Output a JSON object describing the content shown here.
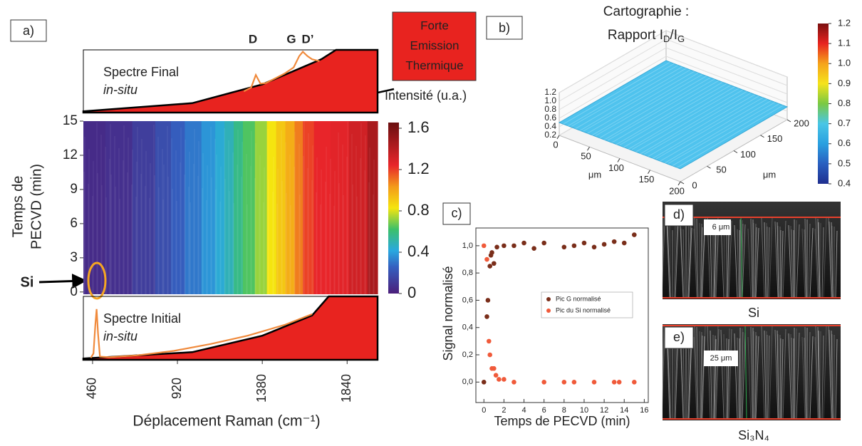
{
  "chart_data": [
    {
      "type": "heatmap",
      "panel_label": "a)",
      "ylabel": [
        "Temps de",
        "PECVD  (min)"
      ],
      "xlabel": "Déplacement Raman (cm⁻¹)",
      "xlim": [
        410,
        2005
      ],
      "ylim": [
        -0.2,
        15
      ],
      "xticks": [
        460,
        920,
        1380,
        1840
      ],
      "yticks": [
        0,
        3,
        6,
        9,
        12,
        15
      ],
      "x": [
        460,
        600,
        750,
        850,
        920,
        1000,
        1100,
        1150,
        1200,
        1250,
        1300,
        1380,
        1430,
        1480,
        1530,
        1580,
        1620,
        1700,
        1800,
        1900,
        2000
      ],
      "values": [
        0.05,
        0.07,
        0.12,
        0.18,
        0.24,
        0.3,
        0.36,
        0.42,
        0.47,
        0.55,
        0.62,
        0.7,
        0.8,
        0.88,
        0.95,
        1.05,
        1.15,
        1.2,
        1.22,
        1.28,
        1.4
      ],
      "annotation": "Si",
      "colorbar": {
        "title": "Intensité (u.a.)",
        "lim": [
          0,
          1.6
        ],
        "ticks": [
          0,
          0.4,
          0.8,
          1.2,
          1.6
        ],
        "colorscale": [
          [
            0,
            "#4b1e7a"
          ],
          [
            0.25,
            "#3460c0"
          ],
          [
            0.4,
            "#29a8e0"
          ],
          [
            0.6,
            "#3cc06a"
          ],
          [
            0.8,
            "#f5e50f"
          ],
          [
            1.0,
            "#f39a1a"
          ],
          [
            1.2,
            "#e8252a"
          ],
          [
            1.6,
            "#6a0f10"
          ]
        ]
      }
    },
    {
      "type": "area",
      "title": "Spectre Final",
      "subtitle": "in-situ",
      "peak_labels": [
        "D",
        "G",
        "D’"
      ],
      "callout": [
        "Forte",
        "Emission",
        "Thermique"
      ],
      "xlim": [
        410,
        2005
      ],
      "ylim": [
        0,
        1
      ],
      "series": [
        {
          "color": "#e8231f",
          "x": [
            410,
            1000,
            1380,
            1700,
            1780,
            2005
          ],
          "values": [
            0.02,
            0.15,
            0.45,
            0.85,
            1.0,
            1.0
          ]
        },
        {
          "color": "#f08a3c",
          "x": [
            1280,
            1320,
            1345,
            1370,
            1400,
            1500,
            1550,
            1580,
            1600,
            1625,
            1650,
            1690
          ],
          "values": [
            0.34,
            0.4,
            0.6,
            0.46,
            0.47,
            0.62,
            0.72,
            0.9,
            0.97,
            0.9,
            0.85,
            0.82
          ]
        }
      ]
    },
    {
      "type": "area",
      "title": "Spectre Initial",
      "subtitle": "in-situ",
      "xlim": [
        410,
        2005
      ],
      "ylim": [
        0,
        1
      ],
      "series": [
        {
          "color": "#e8231f",
          "x": [
            410,
            1000,
            1380,
            1650,
            1740,
            2005
          ],
          "values": [
            0.02,
            0.12,
            0.38,
            0.7,
            1.0,
            1.0
          ]
        },
        {
          "color": "#f08a3c",
          "x": [
            450,
            465,
            475,
            482,
            490,
            500,
            550,
            700,
            900,
            1100,
            1300,
            1500,
            1650
          ],
          "values": [
            0.03,
            0.1,
            0.55,
            0.8,
            0.4,
            0.05,
            0.04,
            0.07,
            0.14,
            0.25,
            0.38,
            0.55,
            0.72
          ]
        }
      ]
    },
    {
      "type": "surface3d",
      "panel_label": "b)",
      "title": "Cartographie :",
      "subtitle": [
        "Rapport I",
        "D",
        "/I",
        "G"
      ],
      "xlim": [
        0,
        200
      ],
      "ylim": [
        0,
        200
      ],
      "zlim": [
        0.2,
        1.2
      ],
      "xticks": [
        0,
        50,
        100,
        150,
        200
      ],
      "yticks": [
        0,
        50,
        100,
        150,
        200
      ],
      "zticks": [
        0.2,
        0.4,
        0.6,
        0.8,
        {
          "value": 1,
          "label": "1.0"
        },
        1.2
      ],
      "xlabel": "μm",
      "ylabel": "μm",
      "surface_value": 0.5,
      "surface_color": "#4fc3ee",
      "colorbar": {
        "lim": [
          0.4,
          1.2
        ],
        "ticks": [
          0.4,
          0.5,
          0.6,
          0.7,
          0.8,
          0.9,
          {
            "value": 1,
            "label": "1.0"
          },
          1.1,
          1.2
        ],
        "colorscale": [
          [
            0.4,
            "#1f2f8f"
          ],
          [
            0.5,
            "#2a5fc0"
          ],
          [
            0.6,
            "#2aa0e0"
          ],
          [
            0.7,
            "#49c6e6"
          ],
          [
            0.8,
            "#7ac943"
          ],
          [
            0.9,
            "#f5e31b"
          ],
          [
            1.0,
            "#f5a31b"
          ],
          [
            1.1,
            "#e8231f"
          ],
          [
            1.2,
            "#7a1010"
          ]
        ]
      }
    },
    {
      "type": "scatter",
      "panel_label": "c)",
      "xlabel": "Temps de PECVD (min)",
      "ylabel": "Signal normalisé",
      "xlim": [
        -0.8,
        16.4
      ],
      "ylim": [
        -0.15,
        1.13
      ],
      "xticks": [
        0,
        2,
        4,
        6,
        8,
        10,
        12,
        14,
        16
      ],
      "yticks": [
        {
          "value": 0,
          "label": "0,0"
        },
        {
          "value": 0.2,
          "label": "0,2"
        },
        {
          "value": 0.4,
          "label": "0,4"
        },
        {
          "value": 0.6,
          "label": "0,6"
        },
        {
          "value": 0.8,
          "label": "0,8"
        },
        {
          "value": 1,
          "label": "1,0"
        }
      ],
      "legend": "center-right",
      "series": [
        {
          "name": "Pic G normalisé",
          "color": "#7a2e1a",
          "x": [
            0,
            0.3,
            0.4,
            0.6,
            0.7,
            0.8,
            1,
            1.3,
            2,
            3,
            4,
            5,
            6,
            8,
            9,
            10,
            11,
            12,
            13,
            14,
            15
          ],
          "values": [
            0,
            0.48,
            0.6,
            0.85,
            0.93,
            0.95,
            0.87,
            0.99,
            1.0,
            1.0,
            1.02,
            0.98,
            1.02,
            0.99,
            1.0,
            1.02,
            0.99,
            1.01,
            1.03,
            1.02,
            1.08
          ]
        },
        {
          "name": "Pic du Si normalisé",
          "color": "#f05a3a",
          "x": [
            0,
            0.3,
            0.5,
            0.6,
            0.8,
            1,
            1.2,
            1.5,
            2,
            3,
            6,
            8,
            9,
            11,
            13,
            13.5,
            15
          ],
          "values": [
            1.0,
            0.9,
            0.3,
            0.2,
            0.1,
            0.1,
            0.05,
            0.02,
            0.02,
            0,
            0,
            0,
            0,
            0,
            0,
            0,
            0
          ]
        }
      ]
    }
  ],
  "images": [
    {
      "panel_label": "d)",
      "scale": "6 μm",
      "caption": "Si"
    },
    {
      "panel_label": "e)",
      "scale": "25 μm",
      "caption": "Si₃N₄"
    }
  ]
}
